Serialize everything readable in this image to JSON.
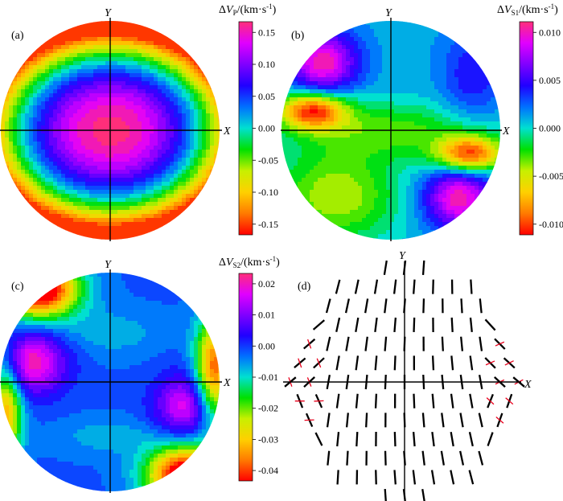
{
  "chart_data": [
    {
      "type": "heatmap",
      "panel": "(a)",
      "title": "ΔV_P /(km·s⁻¹)",
      "title_parts": {
        "delta": "Δ",
        "symbol": "V",
        "subscript": "P",
        "unit": "/(km·s",
        "exp": "-1",
        "close": ")"
      },
      "xlabel": "X",
      "ylabel": "Y",
      "projection": "pole-figure circle",
      "colorbar_ticks": [
        "0.15",
        "0.10",
        "0.05",
        "0.00",
        "-0.05",
        "-0.10",
        "-0.15"
      ],
      "range": [
        -0.17,
        0.16
      ],
      "pattern": "maximum at centre (~0.16), decreasing outward to minimum (~-0.17) at rim, elongated along X"
    },
    {
      "type": "heatmap",
      "panel": "(b)",
      "title": "ΔV_S1 /(km·s⁻¹)",
      "title_parts": {
        "delta": "Δ",
        "symbol": "V",
        "subscript": "S1",
        "unit": "/(km·s",
        "exp": "-1",
        "close": ")"
      },
      "xlabel": "X",
      "ylabel": "Y",
      "projection": "pole-figure circle",
      "colorbar_ticks": [
        "0.010",
        "0.005",
        "0.000",
        "-0.005",
        "-0.010"
      ],
      "range": [
        -0.011,
        0.012
      ],
      "pattern": "minima near (-0.75, 0.15) and (0.75, -0.25); maxima near upper-left and lower-right rim"
    },
    {
      "type": "heatmap",
      "panel": "(c)",
      "title": "ΔV_S2 /(km·s⁻¹)",
      "title_parts": {
        "delta": "Δ",
        "symbol": "V",
        "subscript": "S2",
        "unit": "/(km·s",
        "exp": "-1",
        "close": ")"
      },
      "xlabel": "X",
      "ylabel": "Y",
      "projection": "pole-figure circle",
      "colorbar_ticks": [
        "0.02",
        "0.01",
        "0.00",
        "-0.01",
        "-0.02",
        "-0.03",
        "-0.04"
      ],
      "range": [
        -0.04,
        0.026
      ],
      "pattern": "maxima near (-0.75, 0.15) and (0.7, -0.2); minima at top-left, bottom-right and right rim"
    },
    {
      "type": "scatter",
      "panel": "(d)",
      "title": "",
      "xlabel": "X",
      "ylabel": "Y",
      "projection": "pole-figure circle",
      "description": "fast shear-wave polarization directions: black ticks, red segments near X-axis rim",
      "grid_step": 0.16,
      "tick_color": "#000000",
      "secondary_color": "#e8001c"
    }
  ],
  "colors": {
    "scale": [
      "#ff0000",
      "#ff7a00",
      "#ffd000",
      "#c8f000",
      "#00e000",
      "#00e0d0",
      "#0070ff",
      "#2000ff",
      "#8000ff",
      "#e000ff",
      "#ff2e7a"
    ]
  }
}
